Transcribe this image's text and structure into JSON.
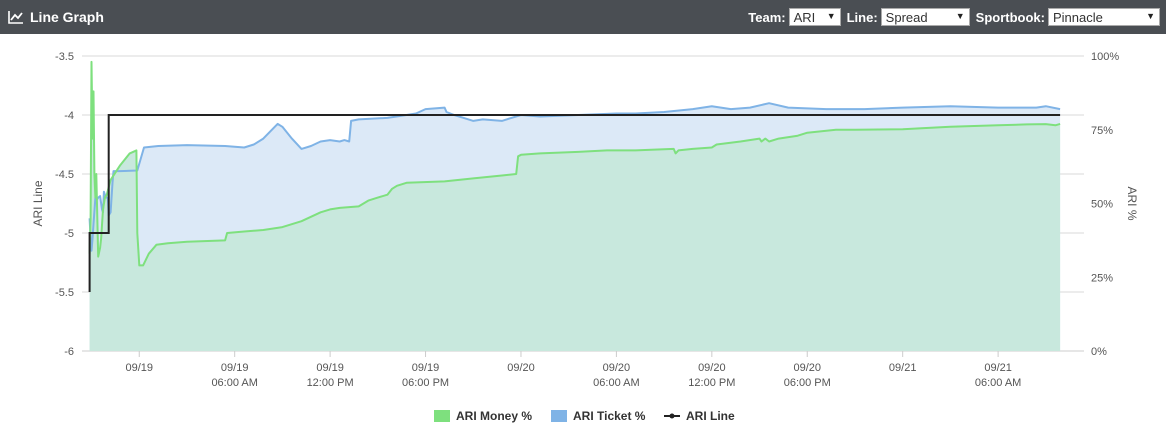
{
  "header": {
    "title": "Line Graph",
    "icon": "line-chart-icon",
    "team_label": "Team:",
    "team_value": "ARI",
    "line_label": "Line:",
    "line_value": "Spread",
    "sportbook_label": "Sportbook:",
    "sportbook_value": "Pinnacle"
  },
  "chart_data": {
    "type": "line",
    "title": "",
    "ylabel_left": "ARI Line",
    "ylabel_right": "ARI %",
    "ylim_left": [
      -6,
      -3.5
    ],
    "ylim_right": [
      0,
      100
    ],
    "yticks_left": [
      "-3.5",
      "-4",
      "-4.5",
      "-5",
      "-5.5",
      "-6"
    ],
    "yticks_right": [
      "100%",
      "75%",
      "50%",
      "25%",
      "0%"
    ],
    "xlim": [
      -6,
      99
    ],
    "xticks": [
      {
        "x": 0,
        "line1": "09/19",
        "line2": ""
      },
      {
        "x": 10,
        "line1": "09/19",
        "line2": "06:00 AM"
      },
      {
        "x": 20,
        "line1": "09/19",
        "line2": "12:00 PM"
      },
      {
        "x": 30,
        "line1": "09/19",
        "line2": "06:00 PM"
      },
      {
        "x": 40,
        "line1": "09/20",
        "line2": ""
      },
      {
        "x": 50,
        "line1": "09/20",
        "line2": "06:00 AM"
      },
      {
        "x": 60,
        "line1": "09/20",
        "line2": "12:00 PM"
      },
      {
        "x": 70,
        "line1": "09/20",
        "line2": "06:00 PM"
      },
      {
        "x": 80,
        "line1": "09/21",
        "line2": ""
      },
      {
        "x": 90,
        "line1": "09/21",
        "line2": "06:00 AM"
      }
    ],
    "grid": true,
    "legend_position": "bottom",
    "series": [
      {
        "name": "ARI Money %",
        "axis": "right",
        "color": "#7ee07e",
        "fill": "#c8e8dd",
        "points": [
          [
            -5.2,
            33
          ],
          [
            -5.1,
            45
          ],
          [
            -5.0,
            98
          ],
          [
            -4.95,
            85
          ],
          [
            -4.9,
            72
          ],
          [
            -4.8,
            88
          ],
          [
            -4.7,
            60
          ],
          [
            -4.6,
            52
          ],
          [
            -4.5,
            60
          ],
          [
            -4.3,
            32
          ],
          [
            -4.1,
            35
          ],
          [
            -4,
            38
          ],
          [
            -3.8,
            48
          ],
          [
            -3.6,
            52
          ],
          [
            -3.4,
            53
          ],
          [
            -3,
            58
          ],
          [
            -2,
            63
          ],
          [
            -1,
            67
          ],
          [
            -0.3,
            68
          ],
          [
            -0.2,
            40
          ],
          [
            0,
            29
          ],
          [
            0.4,
            29
          ],
          [
            1,
            33
          ],
          [
            1.8,
            36
          ],
          [
            3,
            36.5
          ],
          [
            5,
            37
          ],
          [
            9,
            37.5
          ],
          [
            9.2,
            40
          ],
          [
            11,
            40.5
          ],
          [
            13,
            41
          ],
          [
            15,
            42
          ],
          [
            17,
            44
          ],
          [
            19,
            47
          ],
          [
            20,
            48
          ],
          [
            21,
            48.5
          ],
          [
            23,
            49
          ],
          [
            24,
            51
          ],
          [
            25,
            52
          ],
          [
            26,
            53
          ],
          [
            26.5,
            55
          ],
          [
            27,
            56
          ],
          [
            28,
            57
          ],
          [
            32,
            57.5
          ],
          [
            35,
            58.5
          ],
          [
            38,
            59.5
          ],
          [
            39.5,
            60
          ],
          [
            39.7,
            66
          ],
          [
            40,
            66.5
          ],
          [
            42,
            67
          ],
          [
            46,
            67.5
          ],
          [
            49,
            68
          ],
          [
            52,
            68
          ],
          [
            56,
            68.5
          ],
          [
            56.2,
            67
          ],
          [
            56.5,
            68
          ],
          [
            58,
            68.5
          ],
          [
            60,
            69
          ],
          [
            60.5,
            70
          ],
          [
            63,
            71
          ],
          [
            65,
            72
          ],
          [
            65.2,
            71
          ],
          [
            65.6,
            72
          ],
          [
            66,
            71
          ],
          [
            67,
            72
          ],
          [
            69,
            73
          ],
          [
            70,
            74
          ],
          [
            73,
            75
          ],
          [
            75,
            75
          ],
          [
            80,
            75.2
          ],
          [
            85,
            76
          ],
          [
            90,
            76.5
          ],
          [
            93,
            76.8
          ],
          [
            95,
            76.9
          ],
          [
            96,
            76.5
          ],
          [
            96.5,
            77
          ]
        ]
      },
      {
        "name": "ARI Ticket %",
        "axis": "right",
        "color": "#7fb3e6",
        "fill": "#dce9f7",
        "points": [
          [
            -5.2,
            45
          ],
          [
            -5.1,
            38
          ],
          [
            -5.0,
            34
          ],
          [
            -4.9,
            38
          ],
          [
            -4.8,
            43
          ],
          [
            -4.6,
            52
          ],
          [
            -4.5,
            51
          ],
          [
            -4.3,
            52
          ],
          [
            -4.1,
            52.5
          ],
          [
            -3.9,
            48
          ],
          [
            -3.8,
            47
          ],
          [
            -3.7,
            54
          ],
          [
            -3.5,
            52
          ],
          [
            -3.3,
            52
          ],
          [
            -3.2,
            46
          ],
          [
            -3.0,
            47
          ],
          [
            -2.8,
            57
          ],
          [
            -2.7,
            61
          ],
          [
            -2,
            61
          ],
          [
            -0.2,
            61.2
          ],
          [
            0.5,
            69
          ],
          [
            2,
            69.5
          ],
          [
            5,
            69.8
          ],
          [
            9,
            69.5
          ],
          [
            11,
            69
          ],
          [
            12,
            70
          ],
          [
            13,
            72
          ],
          [
            14.5,
            77
          ],
          [
            15,
            76
          ],
          [
            16,
            72
          ],
          [
            17,
            68.5
          ],
          [
            18,
            69.5
          ],
          [
            19,
            71
          ],
          [
            20,
            71.5
          ],
          [
            21,
            71
          ],
          [
            21.5,
            71.5
          ],
          [
            22,
            71
          ],
          [
            22.2,
            78
          ],
          [
            23,
            78.5
          ],
          [
            26,
            79
          ],
          [
            28,
            80
          ],
          [
            29,
            80.5
          ],
          [
            30,
            82
          ],
          [
            32,
            82.5
          ],
          [
            32.2,
            81
          ],
          [
            33,
            80
          ],
          [
            34,
            79
          ],
          [
            35,
            78
          ],
          [
            36,
            78.5
          ],
          [
            38,
            78
          ],
          [
            39,
            79
          ],
          [
            40,
            80
          ],
          [
            42,
            79.5
          ],
          [
            46,
            80
          ],
          [
            50,
            80.5
          ],
          [
            52,
            80.5
          ],
          [
            55,
            81
          ],
          [
            58,
            82
          ],
          [
            60,
            83
          ],
          [
            62,
            82
          ],
          [
            64,
            82.5
          ],
          [
            66,
            84
          ],
          [
            68,
            82.5
          ],
          [
            72,
            82
          ],
          [
            76,
            82
          ],
          [
            80,
            82.5
          ],
          [
            85,
            83
          ],
          [
            90,
            82.5
          ],
          [
            94,
            82.5
          ],
          [
            95,
            83
          ],
          [
            96.5,
            82
          ]
        ]
      },
      {
        "name": "ARI Line",
        "axis": "left",
        "color": "#222222",
        "points": [
          [
            -5.2,
            -5.5
          ],
          [
            -5.2,
            -5
          ],
          [
            -3.2,
            -5
          ],
          [
            -3.2,
            -4
          ],
          [
            96.5,
            -4
          ]
        ]
      }
    ]
  },
  "legend": [
    {
      "label": "ARI Money %",
      "color": "#7ee07e",
      "kind": "square"
    },
    {
      "label": "ARI Ticket %",
      "color": "#7fb3e6",
      "kind": "square"
    },
    {
      "label": "ARI Line",
      "color": "#222222",
      "kind": "line"
    }
  ]
}
